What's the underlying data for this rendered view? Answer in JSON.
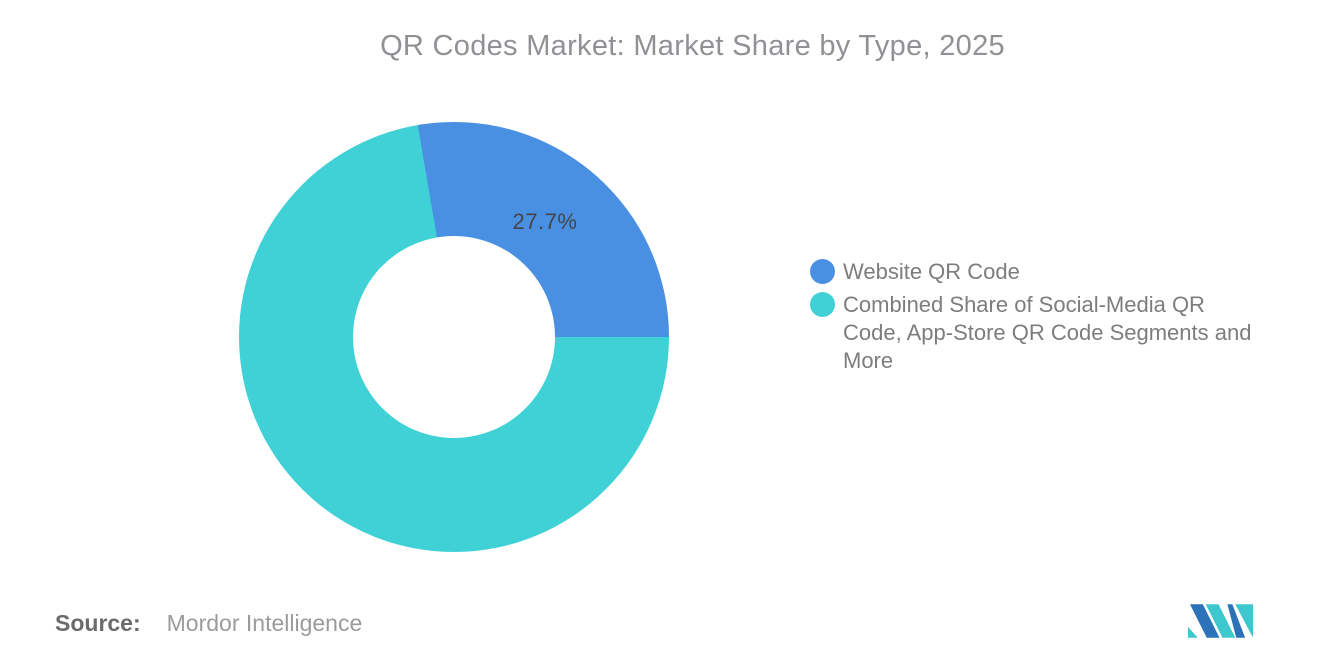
{
  "title": "QR Codes Market: Market Share by Type, 2025",
  "chart_data": {
    "type": "pie",
    "variant": "donut",
    "title": "QR Codes Market: Market Share by Type, 2025",
    "categories": [
      "Website QR Code",
      "Combined Share of Social-Media QR Code, App-Store QR Code Segments and More"
    ],
    "values": [
      27.7,
      72.3
    ],
    "unit": "%",
    "colors": [
      "#4A90E2",
      "#40D1D6"
    ],
    "slice_labels": [
      "27.7%",
      ""
    ],
    "donut_hole_ratio": 0.47,
    "legend_position": "right",
    "grid": false
  },
  "legend": {
    "items": [
      {
        "label": "Website QR Code",
        "color": "#4A90E2"
      },
      {
        "label": "Combined Share of Social-Media QR Code, App-Store QR Code Segments and More",
        "color": "#40D1D6"
      }
    ]
  },
  "source": {
    "label": "Source:",
    "value": "Mordor Intelligence"
  },
  "logo": {
    "name": "Mordor Intelligence",
    "colors": {
      "blue": "#2B72B8",
      "teal": "#3EC7CD"
    }
  }
}
